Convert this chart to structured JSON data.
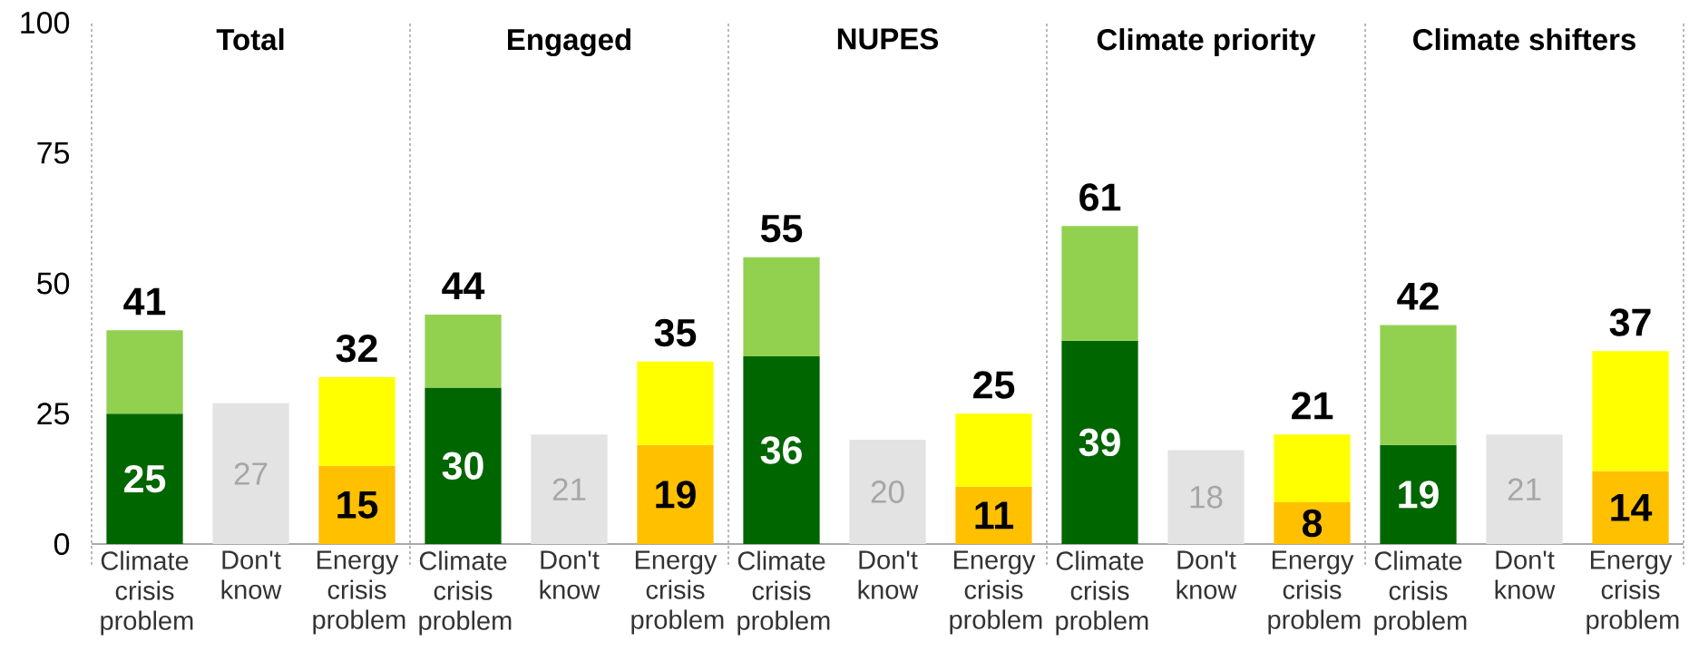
{
  "chart_data": [
    {
      "type": "bar",
      "title": "Total",
      "stacked": true,
      "categories": [
        "Climate crisis problem",
        "Don't know",
        "Energy crisis problem"
      ],
      "series": [
        {
          "colors": [
            "#006600",
            "#e3e3e3",
            "#ffc000"
          ],
          "values": [
            25,
            27,
            15
          ],
          "value_labels": [
            "25",
            "27",
            "15"
          ]
        },
        {
          "colors": [
            "#92d050",
            null,
            "#ffff00"
          ],
          "values": [
            16,
            null,
            17
          ]
        }
      ],
      "totals": [
        "41",
        null,
        "32"
      ],
      "ylim": [
        0,
        100
      ],
      "yticks": [
        0,
        25,
        50,
        75,
        100
      ]
    },
    {
      "type": "bar",
      "title": "Engaged",
      "stacked": true,
      "categories": [
        "Climate crisis problem",
        "Don't know",
        "Energy crisis problem"
      ],
      "series": [
        {
          "colors": [
            "#006600",
            "#e3e3e3",
            "#ffc000"
          ],
          "values": [
            30,
            21,
            19
          ],
          "value_labels": [
            "30",
            "21",
            "19"
          ]
        },
        {
          "colors": [
            "#92d050",
            null,
            "#ffff00"
          ],
          "values": [
            14,
            null,
            16
          ]
        }
      ],
      "totals": [
        "44",
        null,
        "35"
      ],
      "ylim": [
        0,
        100
      ],
      "tick_labels": "x"
    },
    {
      "type": "bar",
      "title": "NUPES",
      "stacked": true,
      "categories": [
        "Climate crisis problem",
        "Don't know",
        "Energy crisis problem"
      ],
      "series": [
        {
          "colors": [
            "#006600",
            "#e3e3e3",
            "#ffc000"
          ],
          "values": [
            36,
            20,
            11
          ],
          "value_labels": [
            "36",
            "20",
            "11"
          ]
        },
        {
          "colors": [
            "#92d050",
            null,
            "#ffff00"
          ],
          "values": [
            19,
            null,
            14
          ]
        }
      ],
      "totals": [
        "55",
        null,
        "25"
      ],
      "ylim": [
        0,
        100
      ],
      "tick_labels": "x"
    },
    {
      "type": "bar",
      "title": "Climate priority",
      "stacked": true,
      "categories": [
        "Climate crisis problem",
        "Don't know",
        "Energy crisis problem"
      ],
      "series": [
        {
          "colors": [
            "#006600",
            "#e3e3e3",
            "#ffc000"
          ],
          "values": [
            39,
            18,
            8
          ],
          "value_labels": [
            "39",
            "18",
            "8"
          ]
        },
        {
          "colors": [
            "#92d050",
            null,
            "#ffff00"
          ],
          "values": [
            22,
            null,
            13
          ]
        }
      ],
      "totals": [
        "61",
        null,
        "21"
      ],
      "ylim": [
        0,
        100
      ],
      "tick_labels": "x"
    },
    {
      "type": "bar",
      "title": "Climate shifters",
      "stacked": true,
      "categories": [
        "Climate crisis problem",
        "Don't know",
        "Energy crisis problem"
      ],
      "series": [
        {
          "colors": [
            "#006600",
            "#e3e3e3",
            "#ffc000"
          ],
          "values": [
            19,
            21,
            14
          ],
          "value_labels": [
            "19",
            "21",
            "14"
          ]
        },
        {
          "colors": [
            "#92d050",
            null,
            "#ffff00"
          ],
          "values": [
            23,
            null,
            23
          ]
        }
      ],
      "totals": [
        "42",
        null,
        "37"
      ],
      "ylim": [
        0,
        100
      ],
      "tick_labels": "x"
    }
  ]
}
